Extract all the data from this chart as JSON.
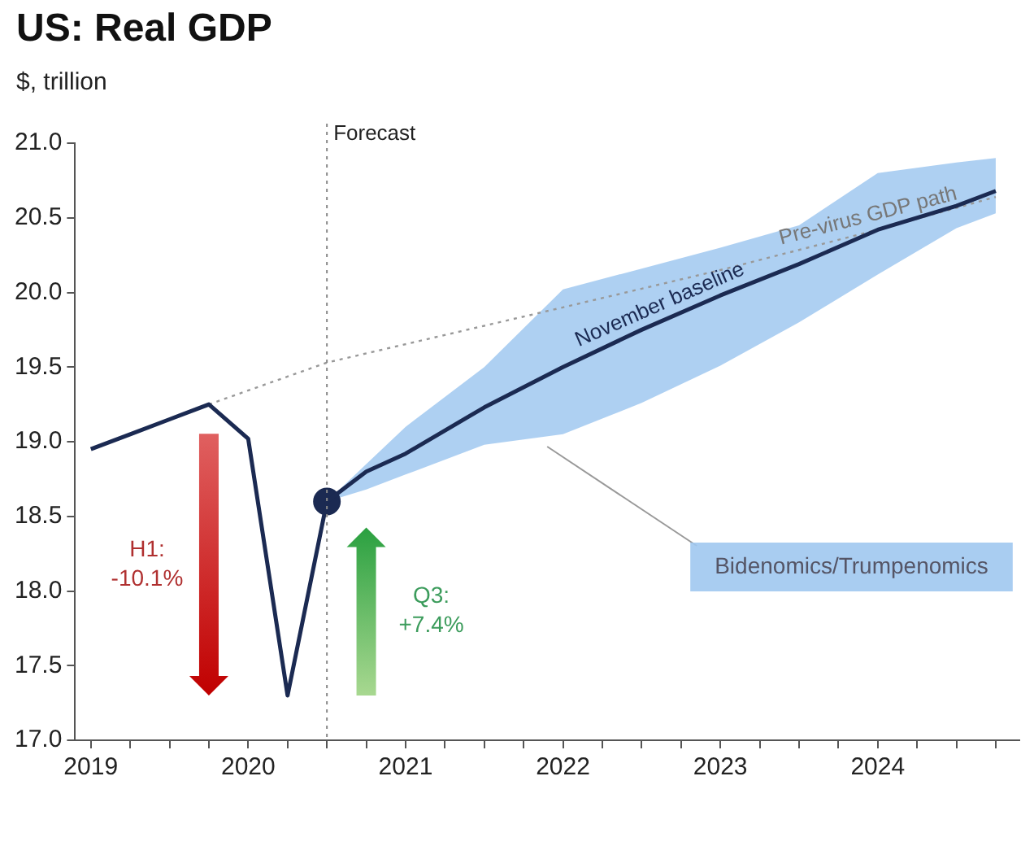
{
  "chart_data": {
    "type": "line",
    "title": "US: Real GDP",
    "ylabel": "$, trillion",
    "series": [
      {
        "name": "November baseline",
        "color": "#1b2a52",
        "x": [
          2019,
          2019.25,
          2019.5,
          2019.75,
          2020,
          2020.25,
          2020.5,
          2020.75,
          2021,
          2021.5,
          2022,
          2022.5,
          2023,
          2023.5,
          2024,
          2024.5,
          2024.75
        ],
        "values": [
          18.95,
          19.05,
          19.15,
          19.25,
          19.02,
          17.3,
          18.6,
          18.8,
          18.92,
          19.23,
          19.5,
          19.75,
          19.98,
          20.19,
          20.42,
          20.58,
          20.68
        ],
        "lower": [
          null,
          null,
          null,
          null,
          null,
          null,
          18.6,
          18.68,
          18.78,
          18.98,
          19.05,
          19.26,
          19.51,
          19.8,
          20.12,
          20.43,
          20.53
        ],
        "upper": [
          null,
          null,
          null,
          null,
          null,
          null,
          18.6,
          18.85,
          19.1,
          19.5,
          20.02,
          20.16,
          20.3,
          20.45,
          20.8,
          20.87,
          20.9
        ]
      },
      {
        "name": "Pre-virus GDP path",
        "color": "#999999",
        "line_style": "dotted",
        "x": [
          2019.75,
          2020.5,
          2022,
          2023,
          2024,
          2024.75
        ],
        "values": [
          19.25,
          19.53,
          19.9,
          20.15,
          20.42,
          20.64
        ]
      },
      {
        "type": "scatter",
        "color": "#1b2a52",
        "marker": "circle",
        "x": [
          2020.5
        ],
        "values": [
          18.6
        ]
      }
    ],
    "marker": "none",
    "line_style": "solid",
    "grid": false,
    "legend": false,
    "xlim": [
      2018.9,
      2024.9
    ],
    "xticks": [
      2019,
      {
        "value": 2019.25,
        "label": null
      },
      {
        "value": 2019.5,
        "label": null
      },
      {
        "value": 2019.75,
        "label": null
      },
      2020,
      {
        "value": 2020.25,
        "label": null
      },
      {
        "value": 2020.5,
        "label": null
      },
      {
        "value": 2020.75,
        "label": null
      },
      2021,
      {
        "value": 2021.25,
        "label": null
      },
      {
        "value": 2021.5,
        "label": null
      },
      {
        "value": 2021.75,
        "label": null
      },
      2022,
      {
        "value": 2022.25,
        "label": null
      },
      {
        "value": 2022.5,
        "label": null
      },
      {
        "value": 2022.75,
        "label": null
      },
      2023,
      {
        "value": 2023.25,
        "label": null
      },
      {
        "value": 2023.5,
        "label": null
      },
      {
        "value": 2023.75,
        "label": null
      },
      2024,
      {
        "value": 2024.25,
        "label": null
      },
      {
        "value": 2024.5,
        "label": null
      },
      {
        "value": 2024.75,
        "label": null
      }
    ],
    "ylim": [
      17,
      21
    ],
    "yticks": [
      {
        "value": 17,
        "label": "17.0"
      },
      17.5,
      {
        "value": 18,
        "label": "18.0"
      },
      18.5,
      {
        "value": 19,
        "label": "19.0"
      },
      19.5,
      {
        "value": 20,
        "label": "20.0"
      },
      20.5,
      {
        "value": 21,
        "label": "21.0"
      }
    ],
    "ref_lines": [
      {
        "axis": "x",
        "value": 2020.5,
        "label": "Forecast",
        "color": "#888888",
        "line_style": "dotted"
      }
    ],
    "annotations": [
      "H1: -10.1%",
      "Q3: +7.4%",
      {
        "text": "Bidenomics/Trumpenomics",
        "x": 2021.9,
        "y": 19.0
      }
    ]
  }
}
